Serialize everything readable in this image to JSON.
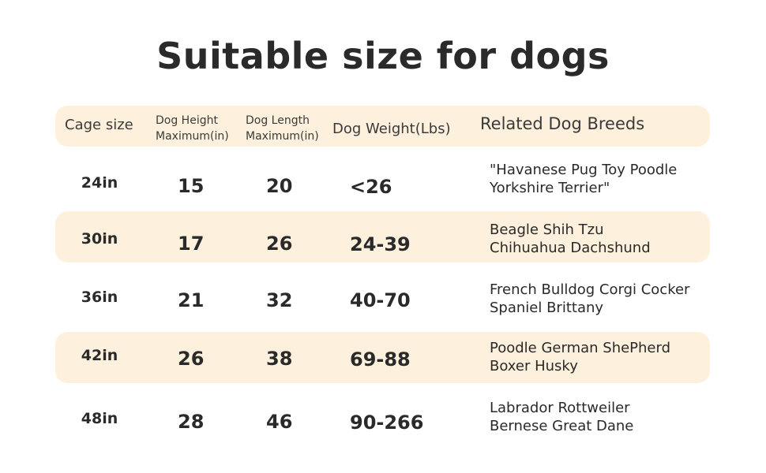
{
  "title": "Suitable size for dogs",
  "header": {
    "cage_size": "Cage size",
    "dog_height_1": "Dog Height",
    "dog_height_2": "Maximum(in)",
    "dog_length_1": "Dog Length",
    "dog_length_2": "Maximum(in)",
    "dog_weight": "Dog Weight(Lbs)",
    "breeds": "Related Dog Breeds"
  },
  "rows": [
    {
      "cage": "24in",
      "height": "15",
      "length": "20",
      "weight": "<26",
      "breeds_1": "\"Havanese Pug Toy Poodle",
      "breeds_2": "Yorkshire Terrier\""
    },
    {
      "cage": "30in",
      "height": "17",
      "length": "26",
      "weight": "24-39",
      "breeds_1": "Beagle Shih Tzu",
      "breeds_2": "Chihuahua Dachshund"
    },
    {
      "cage": "36in",
      "height": "21",
      "length": "32",
      "weight": "40-70",
      "breeds_1": "French Bulldog Corgi Cocker",
      "breeds_2": "Spaniel Brittany"
    },
    {
      "cage": "42in",
      "height": "26",
      "length": "38",
      "weight": "69-88",
      "breeds_1": "Poodle German ShePherd",
      "breeds_2": "Boxer Husky"
    },
    {
      "cage": "48in",
      "height": "28",
      "length": "46",
      "weight": "90-266",
      "breeds_1": "Labrador Rottweiler",
      "breeds_2": "Bernese Great Dane"
    }
  ],
  "colors": {
    "band": "#fdf0dc",
    "text": "#2a2a2a"
  }
}
